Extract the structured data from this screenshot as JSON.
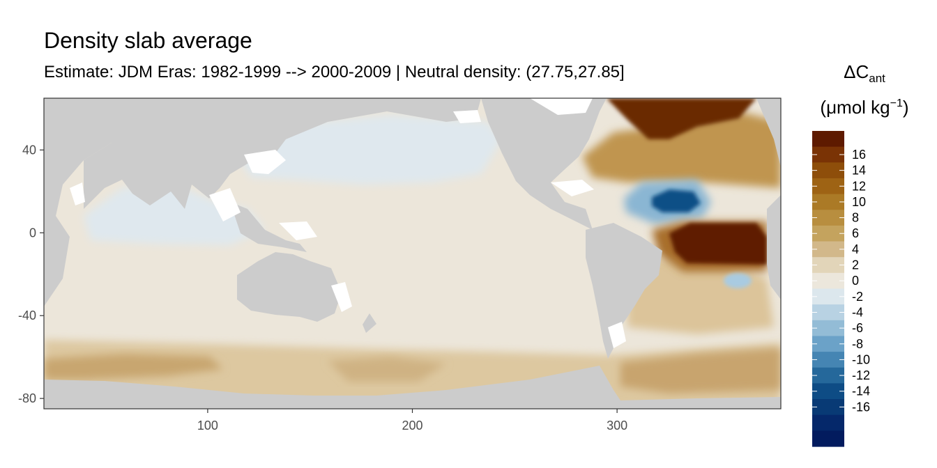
{
  "chart_data": {
    "type": "heatmap",
    "title": "Density slab average",
    "subtitle": "Estimate: JDM Eras: 1982-1999 --> 2000-2009 | Neutral density: (27.75,27.85]",
    "xlabel": "",
    "ylabel": "",
    "xlim": [
      20,
      380
    ],
    "ylim": [
      -85,
      65
    ],
    "x_ticks": [
      100,
      200,
      300
    ],
    "y_ticks": [
      40,
      0,
      -40,
      -80
    ],
    "legend": {
      "title_main": "ΔC",
      "title_sub": "ant",
      "unit_prefix": "(μmol kg",
      "unit_sup": "−1",
      "unit_suffix": ")",
      "placement": "right"
    },
    "colorbar": {
      "labels": [
        "16",
        "14",
        "12",
        "10",
        "8",
        "6",
        "4",
        "2",
        "0",
        "-2",
        "-4",
        "-6",
        "-8",
        "-10",
        "-12",
        "-14",
        "-16"
      ],
      "colors": [
        "#5e1a00",
        "#7a3305",
        "#8e4e0a",
        "#9e6314",
        "#ab7a26",
        "#b88e3f",
        "#c4a35e",
        "#d2b88a",
        "#e2d5b9",
        "#ece7dc",
        "#dce7ed",
        "#b8d2e3",
        "#93bcd6",
        "#6ba2c8",
        "#4585b3",
        "#25689b",
        "#0e4c85",
        "#083a75",
        "#05286a",
        "#021b5e"
      ]
    },
    "land_color": "#cccccc",
    "field": [
      {
        "region": "Indo-Pacific background",
        "value": 1
      },
      {
        "region": "North Pacific",
        "value": -1
      },
      {
        "region": "Arabian Sea / Bay of Bengal",
        "value": -1
      },
      {
        "region": "Southern Ocean band",
        "value": 4
      },
      {
        "region": "Southern Ocean core",
        "value": 7
      },
      {
        "region": "North Atlantic subpolar",
        "value": 9
      },
      {
        "region": "Labrador / Irminger",
        "value": 16
      },
      {
        "region": "North Atlantic subtropical minimum",
        "value": -14
      },
      {
        "region": "Tropical Atlantic maximum",
        "value": 18
      },
      {
        "region": "South Atlantic",
        "value": 3
      },
      {
        "region": "South Atlantic eddy",
        "value": -3
      }
    ]
  }
}
